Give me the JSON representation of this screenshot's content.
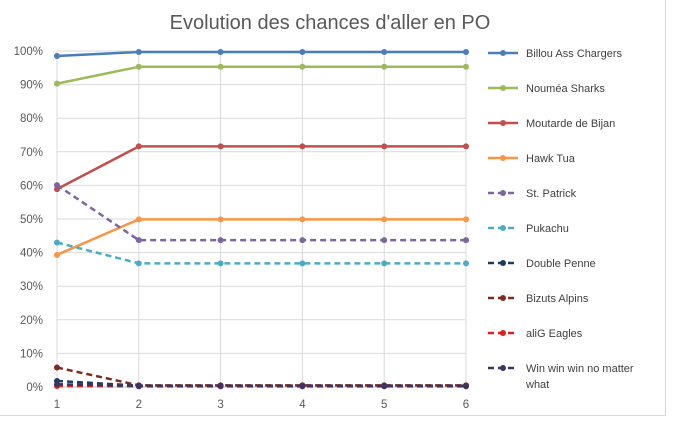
{
  "chart_data": {
    "type": "line",
    "title": "Evolution des chances d'aller en PO",
    "x": [
      1,
      2,
      3,
      4,
      5,
      6
    ],
    "ylim": [
      0,
      1
    ],
    "ytick_values": [
      0,
      0.1,
      0.2,
      0.3,
      0.4,
      0.5,
      0.6,
      0.7,
      0.8,
      0.9,
      1.0
    ],
    "ytick_labels": [
      "0%",
      "10%",
      "20%",
      "30%",
      "40%",
      "50%",
      "60%",
      "70%",
      "80%",
      "90%",
      "100%"
    ],
    "xtick_labels": [
      "1",
      "2",
      "3",
      "4",
      "5",
      "6"
    ],
    "grid": true,
    "legend": "right",
    "series": [
      {
        "name": "Billou Ass Chargers",
        "color": "#4a7ebb",
        "dashed": false,
        "values": [
          0.985,
          0.997,
          0.997,
          0.997,
          0.997,
          0.997
        ]
      },
      {
        "name": "Nouméa Sharks",
        "color": "#9bbb59",
        "dashed": false,
        "values": [
          0.903,
          0.953,
          0.953,
          0.953,
          0.953,
          0.953
        ]
      },
      {
        "name": "Moutarde de Bijan",
        "color": "#c0504d",
        "dashed": false,
        "values": [
          0.589,
          0.716,
          0.716,
          0.716,
          0.716,
          0.716
        ]
      },
      {
        "name": "Hawk Tua",
        "color": "#f79646",
        "dashed": false,
        "values": [
          0.393,
          0.499,
          0.499,
          0.499,
          0.499,
          0.499
        ]
      },
      {
        "name": "St. Patrick",
        "color": "#8064a2",
        "dashed": true,
        "values": [
          0.601,
          0.437,
          0.437,
          0.437,
          0.437,
          0.437
        ]
      },
      {
        "name": "Pukachu",
        "color": "#4bacc6",
        "dashed": true,
        "values": [
          0.43,
          0.368,
          0.368,
          0.368,
          0.368,
          0.368
        ]
      },
      {
        "name": "Double Penne",
        "color": "#1f3a5f",
        "dashed": true,
        "values": [
          0.018,
          0.004,
          0.004,
          0.004,
          0.004,
          0.004
        ]
      },
      {
        "name": "Bizuts Alpins",
        "color": "#7b2b20",
        "dashed": true,
        "values": [
          0.058,
          0.005,
          0.005,
          0.005,
          0.005,
          0.005
        ]
      },
      {
        "name": "aliG Eagles",
        "color": "#e02020",
        "dashed": true,
        "values": [
          0.003,
          0.002,
          0.002,
          0.002,
          0.002,
          0.002
        ]
      },
      {
        "name": "Win win win no matter what",
        "color": "#3c3464",
        "dashed": true,
        "values": [
          0.008,
          0.003,
          0.003,
          0.003,
          0.003,
          0.003
        ]
      }
    ]
  }
}
